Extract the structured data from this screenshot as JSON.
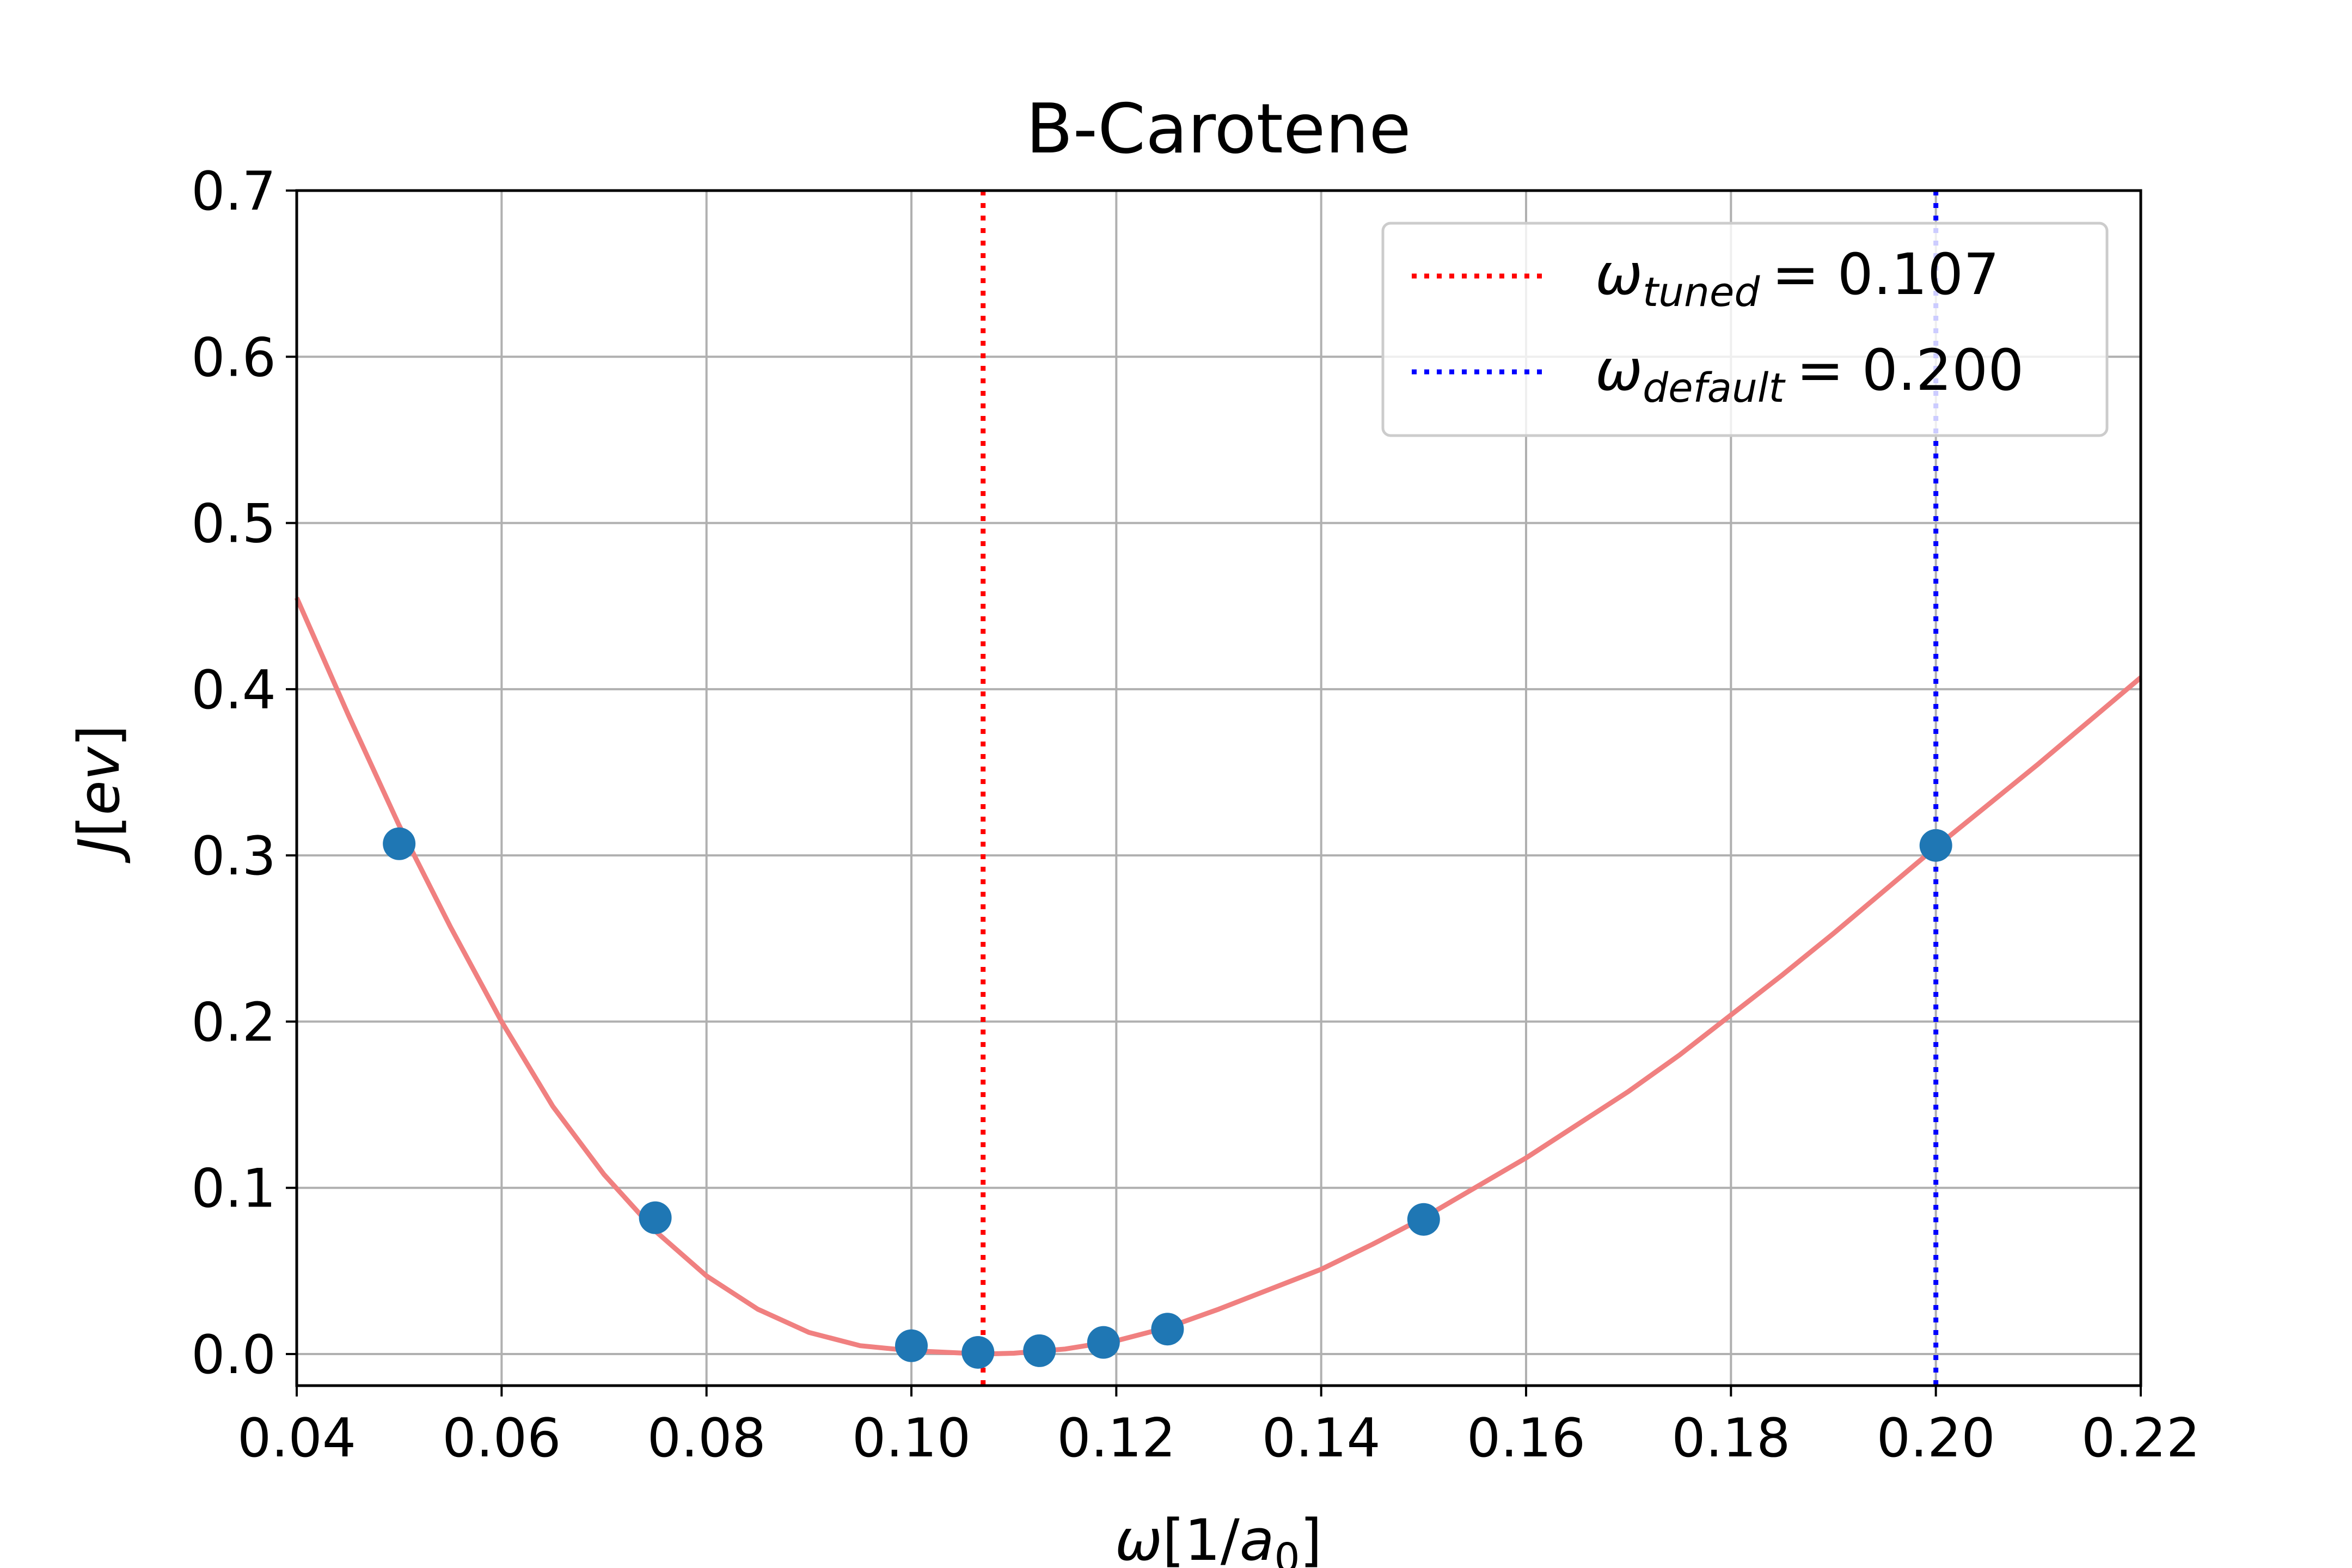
{
  "chart_data": {
    "type": "scatter",
    "title": "B-Carotene",
    "xlabel": {
      "symbol": "ω",
      "text": "[1/",
      "var": "a",
      "sub": "0",
      "close": "]"
    },
    "ylabel": {
      "var": "J",
      "text": "[",
      "unit": "ev",
      "close": "]"
    },
    "xlim": [
      0.04,
      0.22
    ],
    "ylim": [
      -0.019,
      0.7
    ],
    "x_ticks": [
      "0.04",
      "0.06",
      "0.08",
      "0.10",
      "0.12",
      "0.14",
      "0.16",
      "0.18",
      "0.20",
      "0.22"
    ],
    "y_ticks": [
      "0.0",
      "0.1",
      "0.2",
      "0.3",
      "0.4",
      "0.5",
      "0.6",
      "0.7"
    ],
    "grid": true,
    "series": [
      {
        "type": "scatter",
        "color": "#1f77b4",
        "points": [
          {
            "x": 0.05,
            "y": 0.307
          },
          {
            "x": 0.075,
            "y": 0.082
          },
          {
            "x": 0.1,
            "y": 0.005
          },
          {
            "x": 0.1065,
            "y": 0.001
          },
          {
            "x": 0.1125,
            "y": 0.002
          },
          {
            "x": 0.11875,
            "y": 0.007
          },
          {
            "x": 0.125,
            "y": 0.015
          },
          {
            "x": 0.15,
            "y": 0.081
          },
          {
            "x": 0.2,
            "y": 0.306
          }
        ]
      },
      {
        "type": "line",
        "color": "#f08080",
        "points": [
          {
            "x": 0.04,
            "y": 0.455
          },
          {
            "x": 0.045,
            "y": 0.385
          },
          {
            "x": 0.05,
            "y": 0.318
          },
          {
            "x": 0.055,
            "y": 0.257
          },
          {
            "x": 0.06,
            "y": 0.2
          },
          {
            "x": 0.065,
            "y": 0.149
          },
          {
            "x": 0.07,
            "y": 0.108
          },
          {
            "x": 0.075,
            "y": 0.074
          },
          {
            "x": 0.08,
            "y": 0.047
          },
          {
            "x": 0.085,
            "y": 0.027
          },
          {
            "x": 0.09,
            "y": 0.013
          },
          {
            "x": 0.095,
            "y": 0.005
          },
          {
            "x": 0.1,
            "y": 0.002
          },
          {
            "x": 0.107,
            "y": 0.0
          },
          {
            "x": 0.11,
            "y": 0.0005
          },
          {
            "x": 0.115,
            "y": 0.003
          },
          {
            "x": 0.12,
            "y": 0.008
          },
          {
            "x": 0.125,
            "y": 0.016
          },
          {
            "x": 0.13,
            "y": 0.027
          },
          {
            "x": 0.135,
            "y": 0.039
          },
          {
            "x": 0.14,
            "y": 0.051
          },
          {
            "x": 0.145,
            "y": 0.066
          },
          {
            "x": 0.15,
            "y": 0.082
          },
          {
            "x": 0.155,
            "y": 0.1
          },
          {
            "x": 0.16,
            "y": 0.118
          },
          {
            "x": 0.165,
            "y": 0.138
          },
          {
            "x": 0.17,
            "y": 0.158
          },
          {
            "x": 0.175,
            "y": 0.18
          },
          {
            "x": 0.18,
            "y": 0.204
          },
          {
            "x": 0.185,
            "y": 0.228
          },
          {
            "x": 0.19,
            "y": 0.253
          },
          {
            "x": 0.195,
            "y": 0.279
          },
          {
            "x": 0.2,
            "y": 0.305
          },
          {
            "x": 0.205,
            "y": 0.33
          },
          {
            "x": 0.21,
            "y": 0.355
          },
          {
            "x": 0.215,
            "y": 0.381
          },
          {
            "x": 0.22,
            "y": 0.407
          }
        ]
      }
    ],
    "vlines": [
      {
        "x": 0.107,
        "color": "#ff0000",
        "style": "dotted",
        "label": {
          "symbol": "ω",
          "sub": "tuned",
          "value": "= 0.107"
        }
      },
      {
        "x": 0.2,
        "color": "#0000ff",
        "style": "dotted",
        "label": {
          "symbol": "ω",
          "sub": "default",
          "value": "= 0.200"
        }
      }
    ],
    "legend": "top-right"
  }
}
